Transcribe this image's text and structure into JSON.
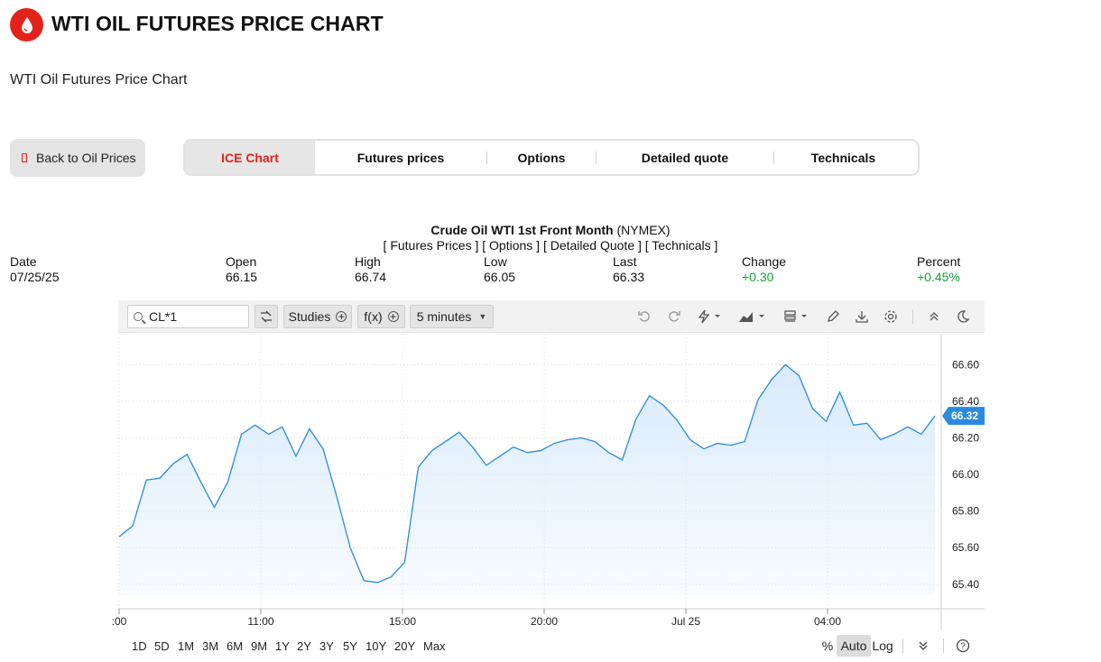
{
  "header": {
    "logo_icon": "oil-drop-icon",
    "title": "WTI OIL FUTURES PRICE CHART",
    "subtitle": "WTI Oil Futures Price Chart",
    "brand_color": "#e3231b"
  },
  "nav": {
    "back_label": "Back to Oil Prices",
    "back_icon": "phone-icon",
    "tabs": [
      {
        "label": "ICE Chart",
        "active": true
      },
      {
        "label": "Futures prices",
        "active": false
      },
      {
        "label": "Options",
        "active": false
      },
      {
        "label": "Detailed quote",
        "active": false
      },
      {
        "label": "Technicals",
        "active": false
      }
    ]
  },
  "quote": {
    "instrument": "Crude Oil WTI 1st Front Month",
    "exchange": "(NYMEX)",
    "links": "[ Futures Prices ] [ Options ] [ Detailed Quote ] [ Technicals ]",
    "stats": [
      {
        "label": "Date",
        "value": "07/25/25",
        "color": "default"
      },
      {
        "label": "Open",
        "value": "66.15",
        "color": "default"
      },
      {
        "label": "High",
        "value": "66.74",
        "color": "default"
      },
      {
        "label": "Low",
        "value": "66.05",
        "color": "default"
      },
      {
        "label": "Last",
        "value": "66.33",
        "color": "default"
      },
      {
        "label": "Change",
        "value": "+0.30",
        "color": "#12a33a"
      },
      {
        "label": "Percent",
        "value": "+0.45%",
        "color": "#12a33a"
      }
    ]
  },
  "toolbar": {
    "symbol": "CL*1",
    "studies_label": "Studies",
    "fx_label": "f(x)",
    "interval_label": "5 minutes",
    "icons": [
      "compare-icon",
      "undo-icon",
      "redo-icon",
      "lightning-icon",
      "chart-type-icon",
      "layout-icon",
      "pencil-icon",
      "download-icon",
      "settings-icon",
      "collapse-icon",
      "dark-mode-icon"
    ]
  },
  "ranges": [
    "1D",
    "5D",
    "1M",
    "3M",
    "6M",
    "9M",
    "1Y",
    "2Y",
    "3Y",
    "5Y",
    "10Y",
    "20Y",
    "Max"
  ],
  "scale_options": {
    "percent": "%",
    "auto": "Auto",
    "log": "Log",
    "help_icon": "help-icon"
  },
  "chart_data": {
    "type": "area",
    "line_color": "#2a8ae0",
    "fill_color": "#d9ebfc",
    "last_price_label": "66.32",
    "x_tick_labels": [
      ":00",
      "11:00",
      "15:00",
      "20:00",
      "Jul 25",
      "04:00"
    ],
    "y_tick_labels": [
      "66.60",
      "66.40",
      "66.20",
      "66.00",
      "65.80",
      "65.60",
      "65.40"
    ],
    "ylim": [
      65.34,
      66.72
    ],
    "grid": true,
    "x": [
      0,
      3,
      6,
      9,
      12,
      15,
      18,
      21,
      24,
      27,
      30,
      33,
      36,
      39,
      42,
      45,
      48,
      51,
      54,
      57,
      60,
      63,
      66,
      69,
      72,
      75,
      78,
      81,
      84,
      87,
      90,
      93,
      96,
      99,
      102,
      105,
      108,
      111,
      114,
      117,
      120,
      123,
      126,
      129,
      132,
      135,
      138,
      141,
      144,
      147,
      150,
      153,
      156,
      159,
      162,
      165,
      168,
      171,
      174,
      177,
      180
    ],
    "values": [
      65.66,
      65.72,
      65.97,
      65.98,
      66.06,
      66.11,
      65.96,
      65.82,
      65.96,
      66.22,
      66.27,
      66.22,
      66.26,
      66.1,
      66.25,
      66.14,
      65.88,
      65.6,
      65.42,
      65.41,
      65.44,
      65.52,
      66.04,
      66.13,
      66.18,
      66.23,
      66.15,
      66.05,
      66.1,
      66.15,
      66.12,
      66.13,
      66.17,
      66.19,
      66.2,
      66.18,
      66.12,
      66.08,
      66.3,
      66.43,
      66.38,
      66.3,
      66.19,
      66.14,
      66.17,
      66.16,
      66.18,
      66.41,
      66.52,
      66.6,
      66.54,
      66.36,
      66.29,
      66.45,
      66.27,
      66.28,
      66.19,
      66.22,
      66.26,
      66.22,
      66.32
    ]
  }
}
